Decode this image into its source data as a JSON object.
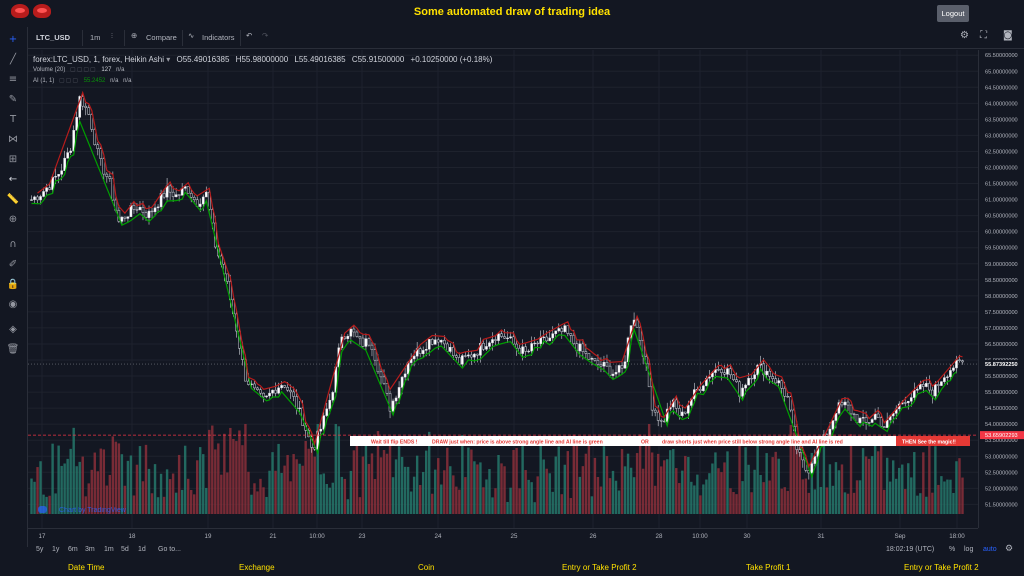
{
  "header": {
    "title": "Some automated draw of trading idea",
    "logout_label": "Logout"
  },
  "toolbar": {
    "symbol": "LTC_USD",
    "interval": "1m",
    "compare_label": "Compare",
    "indicators_label": "Indicators"
  },
  "legend": {
    "main": "forex:LTC_USD, 1, forex, Heikin Ashi",
    "open": "O55.49016385",
    "high": "H55.98000000",
    "low": "L55.49016385",
    "close": "C55.91500000",
    "change": "+0.10250000 (+0.18%)",
    "volume_label": "Volume (20)",
    "volume_value": "127",
    "volume_na": "n/a",
    "ai_label": "AI (1, 1)",
    "ai_value": "55.2452",
    "ai_na1": "n/a",
    "ai_na2": "n/a"
  },
  "annotation": {
    "part1": "Wait till flip ENDS !",
    "part2": "DRAW just when: price is above strong angle line and AI line is green",
    "part3": "OR",
    "part4": "draw shorts just when price still below strong angle line and AI line is red",
    "part5": "THEN See the magic!!"
  },
  "price_axis": {
    "labels": [
      "65.50000000",
      "65.00000000",
      "64.50000000",
      "64.00000000",
      "63.50000000",
      "63.00000000",
      "62.50000000",
      "62.00000000",
      "61.50000000",
      "61.00000000",
      "60.50000000",
      "60.00000000",
      "59.50000000",
      "59.00000000",
      "58.50000000",
      "58.00000000",
      "57.50000000",
      "57.00000000",
      "56.50000000",
      "56.00000000",
      "55.50000000",
      "55.00000000",
      "54.50000000",
      "54.00000000",
      "53.50000000",
      "53.00000000",
      "52.50000000",
      "52.00000000",
      "51.50000000"
    ],
    "current_price": "55.87392250",
    "line_price": "53.65902293",
    "current_color": "#ffffff",
    "line_color": "#f23645"
  },
  "time_axis": {
    "labels": [
      "17",
      "18",
      "19",
      "21",
      "10:00",
      "23",
      "24",
      "25",
      "26",
      "28",
      "10:00",
      "30",
      "31",
      "Sep",
      "18:00"
    ]
  },
  "watermark": "Chart by TradingView",
  "rangebar": {
    "ranges": [
      "5y",
      "1y",
      "6m",
      "3m",
      "1m",
      "5d",
      "1d"
    ],
    "goto": "Go to...",
    "clock": "18:02:19 (UTC)",
    "percent": "%",
    "log": "log",
    "auto": "auto"
  },
  "footer": {
    "items": [
      "Date Time",
      "Exchange",
      "Coin",
      "Entry or Take Profit 2",
      "Take Profit 1",
      "Entry or Take Profit 2"
    ]
  },
  "chart_data": {
    "type": "candlestick",
    "title": "forex:LTC_USD, 1, forex, Heikin Ashi",
    "ylim": [
      51.2,
      65.6
    ],
    "close_path": [
      61.0,
      61.2,
      61.5,
      61.9,
      62.6,
      64.2,
      63.6,
      62.2,
      61.6,
      60.3,
      60.6,
      60.8,
      60.5,
      60.9,
      61.3,
      61.1,
      61.4,
      60.9,
      61.2,
      59.5,
      58.6,
      57.2,
      55.5,
      55.0,
      54.7,
      55.1,
      55.3,
      54.8,
      54.1,
      53.2,
      54.0,
      55.0,
      56.8,
      56.9,
      56.5,
      56.6,
      55.5,
      54.5,
      55.3,
      56.1,
      56.3,
      56.6,
      56.7,
      56.4,
      55.9,
      56.1,
      56.3,
      56.6,
      56.8,
      56.7,
      56.4,
      56.2,
      56.5,
      56.6,
      56.8,
      56.9,
      56.5,
      56.2,
      55.9,
      55.8,
      55.6,
      55.7,
      57.5,
      56.4,
      54.6,
      54.0,
      54.7,
      54.2,
      54.8,
      55.2,
      55.6,
      55.8,
      55.6,
      55.0,
      55.5,
      55.8,
      55.6,
      55.3,
      54.8,
      53.1,
      52.5,
      53.3,
      53.6,
      54.5,
      54.6,
      54.2,
      54.0,
      54.3,
      53.9,
      54.4,
      54.8,
      54.9,
      55.2,
      55.0,
      55.5,
      55.8,
      55.9
    ],
    "ai_line_colors": [
      "#00a000",
      "#b71c1c"
    ],
    "volume_colors": [
      "#26786b",
      "#8b2f3a"
    ]
  }
}
